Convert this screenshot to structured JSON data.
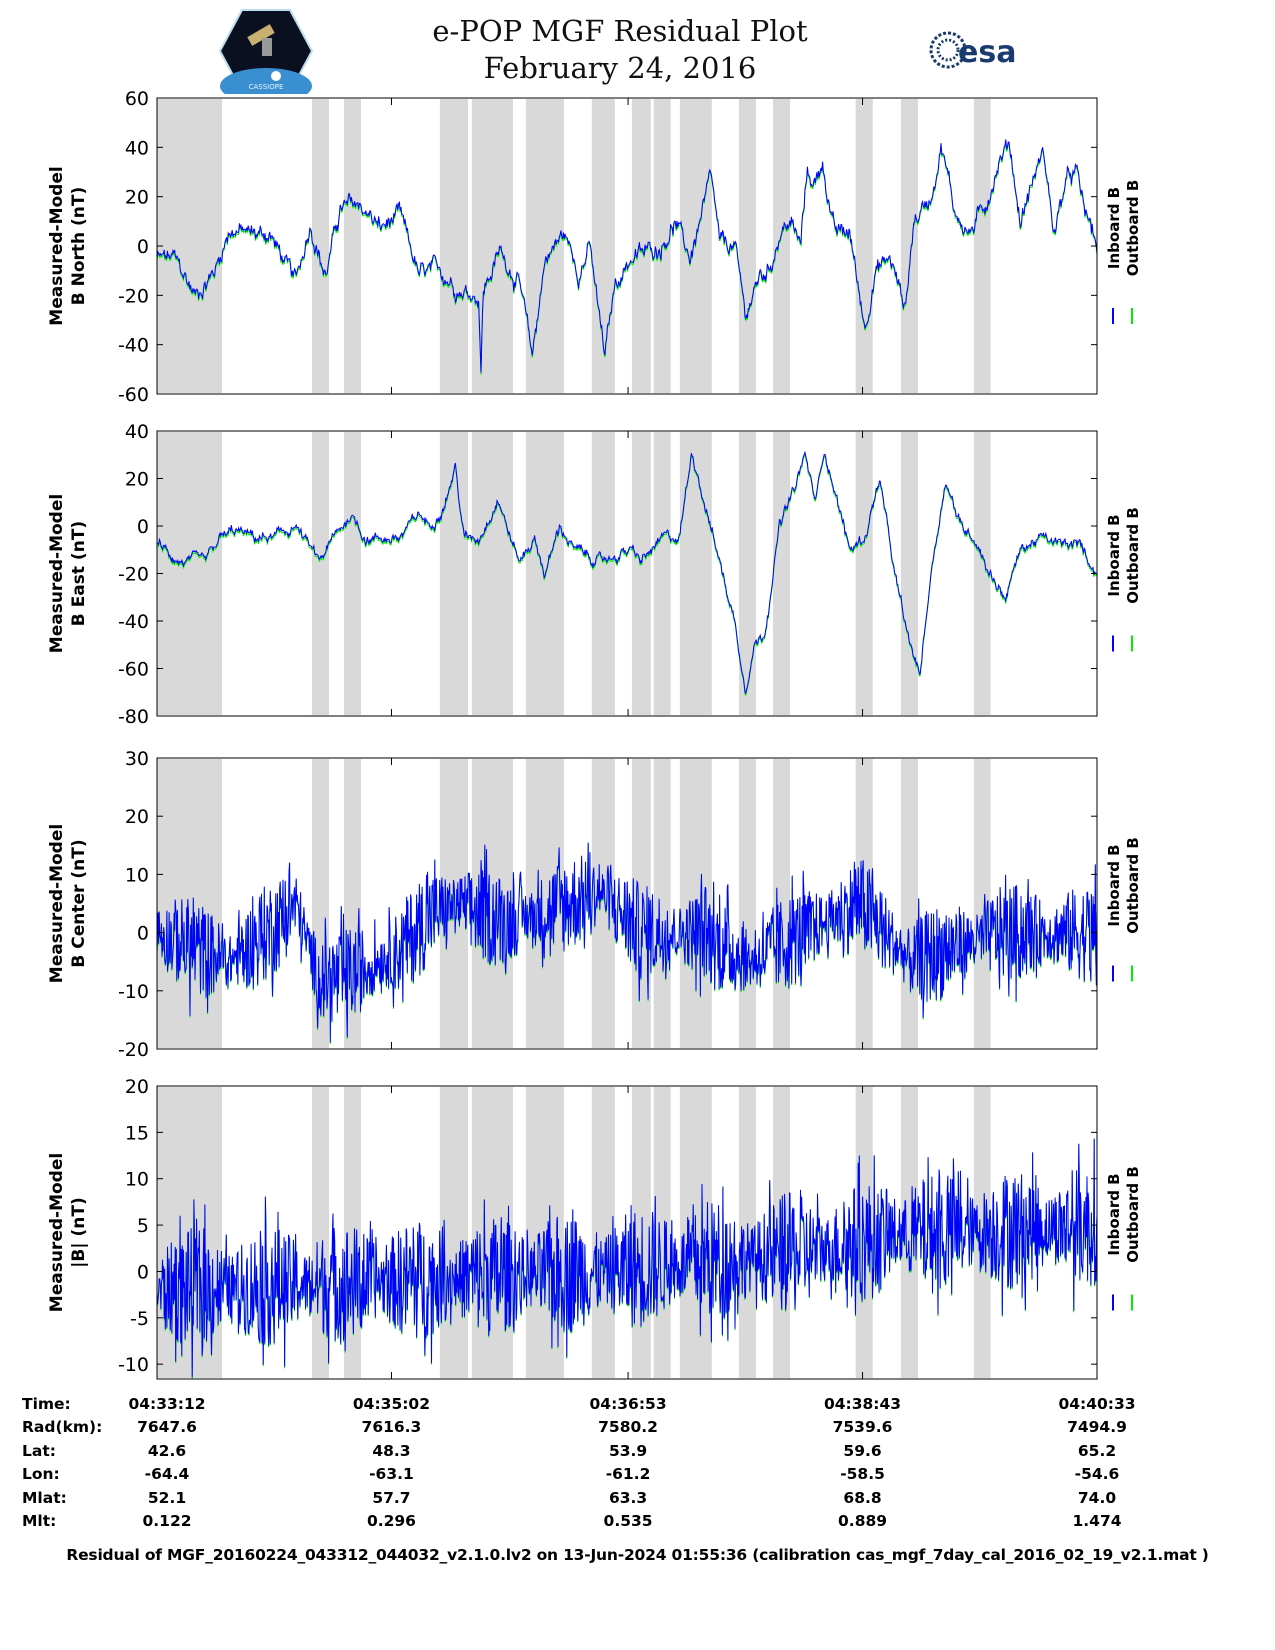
{
  "header": {
    "title": "e-POP MGF Residual Plot",
    "date": "February 24, 2016",
    "esa_logo_text": "esa",
    "epop_logo_text": "CASSIOPE"
  },
  "colors": {
    "inboard": "#0000ff",
    "outboard": "#00ee00",
    "shade": "#d9d9d9"
  },
  "chart_data": [
    {
      "type": "line",
      "ylabel": [
        "Measured-Model",
        "B North (nT)"
      ],
      "ylim": [
        -60,
        60
      ],
      "yticks": [
        60,
        40,
        20,
        0,
        -20,
        -40,
        -60
      ],
      "noise": 4,
      "legend": [
        "Inboard B",
        "Outboard B"
      ],
      "trend": [
        [
          0,
          -5
        ],
        [
          8,
          -5
        ],
        [
          18,
          -20
        ],
        [
          27,
          -10
        ],
        [
          34,
          7
        ],
        [
          44,
          5
        ],
        [
          53,
          5
        ],
        [
          65,
          -15
        ],
        [
          72,
          10
        ],
        [
          79,
          -12
        ],
        [
          86,
          15
        ],
        [
          95,
          17
        ],
        [
          105,
          7
        ],
        [
          114,
          12
        ],
        [
          123,
          -12
        ],
        [
          133,
          -10
        ],
        [
          142,
          -17
        ],
        [
          151,
          -20
        ],
        [
          152,
          -50
        ],
        [
          153,
          -18
        ],
        [
          161,
          -2
        ],
        [
          170,
          -15
        ],
        [
          176,
          -45
        ],
        [
          182,
          -5
        ],
        [
          191,
          5
        ],
        [
          198,
          -10
        ],
        [
          203,
          0
        ],
        [
          210,
          -45
        ],
        [
          215,
          -15
        ],
        [
          222,
          -5
        ],
        [
          231,
          -2
        ],
        [
          236,
          0
        ],
        [
          243,
          10
        ],
        [
          250,
          -5
        ],
        [
          260,
          27
        ],
        [
          264,
          0
        ],
        [
          271,
          0
        ],
        [
          276,
          -28
        ],
        [
          283,
          -12
        ],
        [
          287,
          -10
        ],
        [
          292,
          5
        ],
        [
          297,
          10
        ],
        [
          302,
          0
        ],
        [
          305,
          30
        ],
        [
          309,
          25
        ],
        [
          312,
          35
        ],
        [
          318,
          5
        ],
        [
          325,
          5
        ],
        [
          332,
          -32
        ],
        [
          337,
          -10
        ],
        [
          344,
          -5
        ],
        [
          351,
          -25
        ],
        [
          355,
          10
        ],
        [
          363,
          20
        ],
        [
          368,
          42
        ],
        [
          374,
          15
        ],
        [
          381,
          5
        ],
        [
          388,
          15
        ],
        [
          395,
          35
        ],
        [
          400,
          42
        ],
        [
          405,
          10
        ],
        [
          412,
          30
        ],
        [
          416,
          38
        ],
        [
          421,
          5
        ],
        [
          426,
          25
        ],
        [
          431,
          30
        ],
        [
          435,
          15
        ],
        [
          441,
          0
        ]
      ]
    },
    {
      "type": "line",
      "ylabel": [
        "Measured-Model",
        "B East (nT)"
      ],
      "ylim": [
        -80,
        40
      ],
      "yticks": [
        40,
        20,
        0,
        -20,
        -40,
        -60,
        -80
      ],
      "noise": 2.5,
      "legend": [
        "Inboard B",
        "Outboard B"
      ],
      "trend": [
        [
          0,
          -8
        ],
        [
          11,
          -15
        ],
        [
          23,
          -15
        ],
        [
          30,
          -5
        ],
        [
          37,
          -2
        ],
        [
          46,
          -5
        ],
        [
          55,
          -5
        ],
        [
          65,
          0
        ],
        [
          76,
          -15
        ],
        [
          83,
          -5
        ],
        [
          91,
          5
        ],
        [
          98,
          -5
        ],
        [
          107,
          -5
        ],
        [
          114,
          -5
        ],
        [
          123,
          5
        ],
        [
          128,
          0
        ],
        [
          135,
          10
        ],
        [
          140,
          25
        ],
        [
          144,
          -5
        ],
        [
          151,
          -5
        ],
        [
          160,
          12
        ],
        [
          166,
          -5
        ],
        [
          170,
          -15
        ],
        [
          177,
          -5
        ],
        [
          182,
          -20
        ],
        [
          189,
          0
        ],
        [
          196,
          -10
        ],
        [
          208,
          -15
        ],
        [
          222,
          -10
        ],
        [
          227,
          -15
        ],
        [
          238,
          -5
        ],
        [
          245,
          -5
        ],
        [
          251,
          32
        ],
        [
          257,
          10
        ],
        [
          264,
          -15
        ],
        [
          271,
          -40
        ],
        [
          276,
          -68
        ],
        [
          280,
          -50
        ],
        [
          285,
          -45
        ],
        [
          292,
          0
        ],
        [
          299,
          15
        ],
        [
          304,
          30
        ],
        [
          309,
          10
        ],
        [
          313,
          33
        ],
        [
          318,
          15
        ],
        [
          325,
          -10
        ],
        [
          332,
          -5
        ],
        [
          339,
          20
        ],
        [
          346,
          -20
        ],
        [
          353,
          -50
        ],
        [
          358,
          -62
        ],
        [
          363,
          -20
        ],
        [
          370,
          20
        ],
        [
          377,
          0
        ],
        [
          384,
          -5
        ],
        [
          391,
          -20
        ],
        [
          398,
          -30
        ],
        [
          405,
          -10
        ],
        [
          414,
          -5
        ],
        [
          424,
          -8
        ],
        [
          433,
          -8
        ],
        [
          441,
          -20
        ]
      ]
    },
    {
      "type": "line",
      "ylabel": [
        "Measured-Model",
        "B Center (nT)"
      ],
      "ylim": [
        -20,
        30
      ],
      "yticks": [
        30,
        20,
        10,
        0,
        -10,
        -20
      ],
      "noise": 7,
      "legend": [
        "Inboard B",
        "Outboard B"
      ],
      "trend": [
        [
          0,
          0
        ],
        [
          34,
          -5
        ],
        [
          58,
          2
        ],
        [
          65,
          5
        ],
        [
          76,
          -8
        ],
        [
          86,
          -8
        ],
        [
          114,
          -3
        ],
        [
          128,
          3
        ],
        [
          140,
          5
        ],
        [
          161,
          2
        ],
        [
          177,
          3
        ],
        [
          208,
          7
        ],
        [
          227,
          0
        ],
        [
          255,
          0
        ],
        [
          278,
          -5
        ],
        [
          330,
          5
        ],
        [
          353,
          -5
        ],
        [
          395,
          0
        ],
        [
          441,
          0
        ]
      ]
    },
    {
      "type": "line",
      "ylabel": [
        "Measured-Model",
        "|B| (nT)"
      ],
      "ylim": [
        -11.6,
        20
      ],
      "yticks": [
        20,
        15,
        10,
        5,
        0,
        -5,
        -10
      ],
      "noise": 5.5,
      "legend": [
        "Inboard B",
        "Outboard B"
      ],
      "trend": [
        [
          0,
          -2
        ],
        [
          114,
          -1
        ],
        [
          208,
          0
        ],
        [
          302,
          2
        ],
        [
          349,
          4
        ],
        [
          441,
          5
        ]
      ]
    }
  ],
  "time_axis": {
    "duration_s": 441,
    "tick_seconds": [
      0,
      110,
      221,
      331,
      441
    ]
  },
  "shaded_intervals_s": [
    [
      0,
      30.5
    ],
    [
      72.7,
      80.7
    ],
    [
      87.7,
      95.7
    ],
    [
      132.7,
      145.9
    ],
    [
      147.7,
      167
    ],
    [
      173,
      190.9
    ],
    [
      204,
      214.8
    ],
    [
      222.8,
      231.7
    ],
    [
      233,
      241
    ],
    [
      245.3,
      260.3
    ],
    [
      273,
      281
    ],
    [
      289,
      297
    ],
    [
      327.8,
      335.8
    ],
    [
      349,
      357
    ],
    [
      383.2,
      391.1
    ]
  ],
  "table": {
    "rows": [
      {
        "label": "Time:",
        "values": [
          "04:33:12",
          "04:35:02",
          "04:36:53",
          "04:38:43",
          "04:40:33"
        ]
      },
      {
        "label": "Rad(km):",
        "values": [
          "7647.6",
          "7616.3",
          "7580.2",
          "7539.6",
          "7494.9"
        ]
      },
      {
        "label": "Lat:",
        "values": [
          "42.6",
          "48.3",
          "53.9",
          "59.6",
          "65.2"
        ]
      },
      {
        "label": "Lon:",
        "values": [
          "-64.4",
          "-63.1",
          "-61.2",
          "-58.5",
          "-54.6"
        ]
      },
      {
        "label": "Mlat:",
        "values": [
          "52.1",
          "57.7",
          "63.3",
          "68.8",
          "74.0"
        ]
      },
      {
        "label": "Mlt:",
        "values": [
          "0.122",
          "0.296",
          "0.535",
          "0.889",
          "1.474"
        ]
      }
    ]
  },
  "footer": "Residual of MGF_20160224_043312_044032_v2.1.0.lv2 on 13-Jun-2024 01:55:36 (calibration cas_mgf_7day_cal_2016_02_19_v2.1.mat )"
}
